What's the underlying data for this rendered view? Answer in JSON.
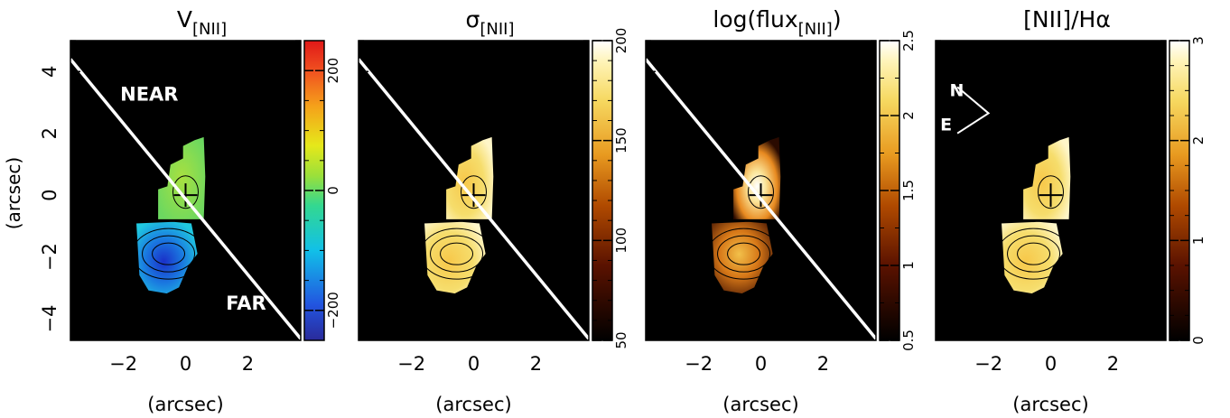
{
  "figure": {
    "xlabel": "(arcsec)",
    "ylabel": "(arcsec)"
  },
  "chart_data": [
    {
      "type": "heatmap",
      "title": "V[NII]",
      "title_main": "V",
      "title_sub": "[NII]",
      "xlim": [
        -3.7,
        3.7
      ],
      "ylim": [
        -4.7,
        5.0
      ],
      "xticks": [
        -2,
        0,
        2
      ],
      "yticks": [
        -4,
        -2,
        0,
        2,
        4
      ],
      "colorbar": {
        "min": -250,
        "max": 250,
        "ticks": [
          -200,
          0,
          200
        ],
        "cmap": "jet"
      },
      "annotations": [
        "NEAR",
        "FAR"
      ],
      "has_diagonal": true,
      "blob_mode": "velocity"
    },
    {
      "type": "heatmap",
      "title": "σ[NII]",
      "title_main": "σ",
      "title_sub": "[NII]",
      "xlim": [
        -3.7,
        3.7
      ],
      "ylim": [
        -4.7,
        5.0
      ],
      "xticks": [
        -2,
        0,
        2
      ],
      "yticks": [
        -4,
        -2,
        0,
        2,
        4
      ],
      "colorbar": {
        "min": 50,
        "max": 200,
        "ticks": [
          50,
          100,
          150,
          200
        ],
        "cmap": "heat"
      },
      "annotations": [],
      "has_diagonal": true,
      "blob_mode": "sigma"
    },
    {
      "type": "heatmap",
      "title": "log(flux[NII])",
      "title_main": "log(flux",
      "title_sub": "[NII]",
      "title_end": ")",
      "xlim": [
        -3.7,
        3.7
      ],
      "ylim": [
        -4.7,
        5.0
      ],
      "xticks": [
        -2,
        0,
        2
      ],
      "yticks": [
        -4,
        -2,
        0,
        2,
        4
      ],
      "colorbar": {
        "min": 0.5,
        "max": 2.5,
        "ticks": [
          0.5,
          1,
          1.5,
          2,
          2.5
        ],
        "cmap": "heat"
      },
      "annotations": [],
      "has_diagonal": true,
      "blob_mode": "flux"
    },
    {
      "type": "heatmap",
      "title": "[NII]/Hα",
      "title_main": "[NII]/Hα",
      "title_sub": "",
      "xlim": [
        -3.7,
        3.7
      ],
      "ylim": [
        -4.7,
        5.0
      ],
      "xticks": [
        -2,
        0,
        2
      ],
      "yticks": [
        -4,
        -2,
        0,
        2,
        4
      ],
      "colorbar": {
        "min": 0,
        "max": 3,
        "ticks": [
          0,
          1,
          2,
          3
        ],
        "cmap": "heat"
      },
      "annotations": [
        "N",
        "E"
      ],
      "has_diagonal": false,
      "blob_mode": "ratio"
    }
  ],
  "colors": {
    "background": "#000000",
    "line": "#ffffff",
    "text": "#000000"
  }
}
